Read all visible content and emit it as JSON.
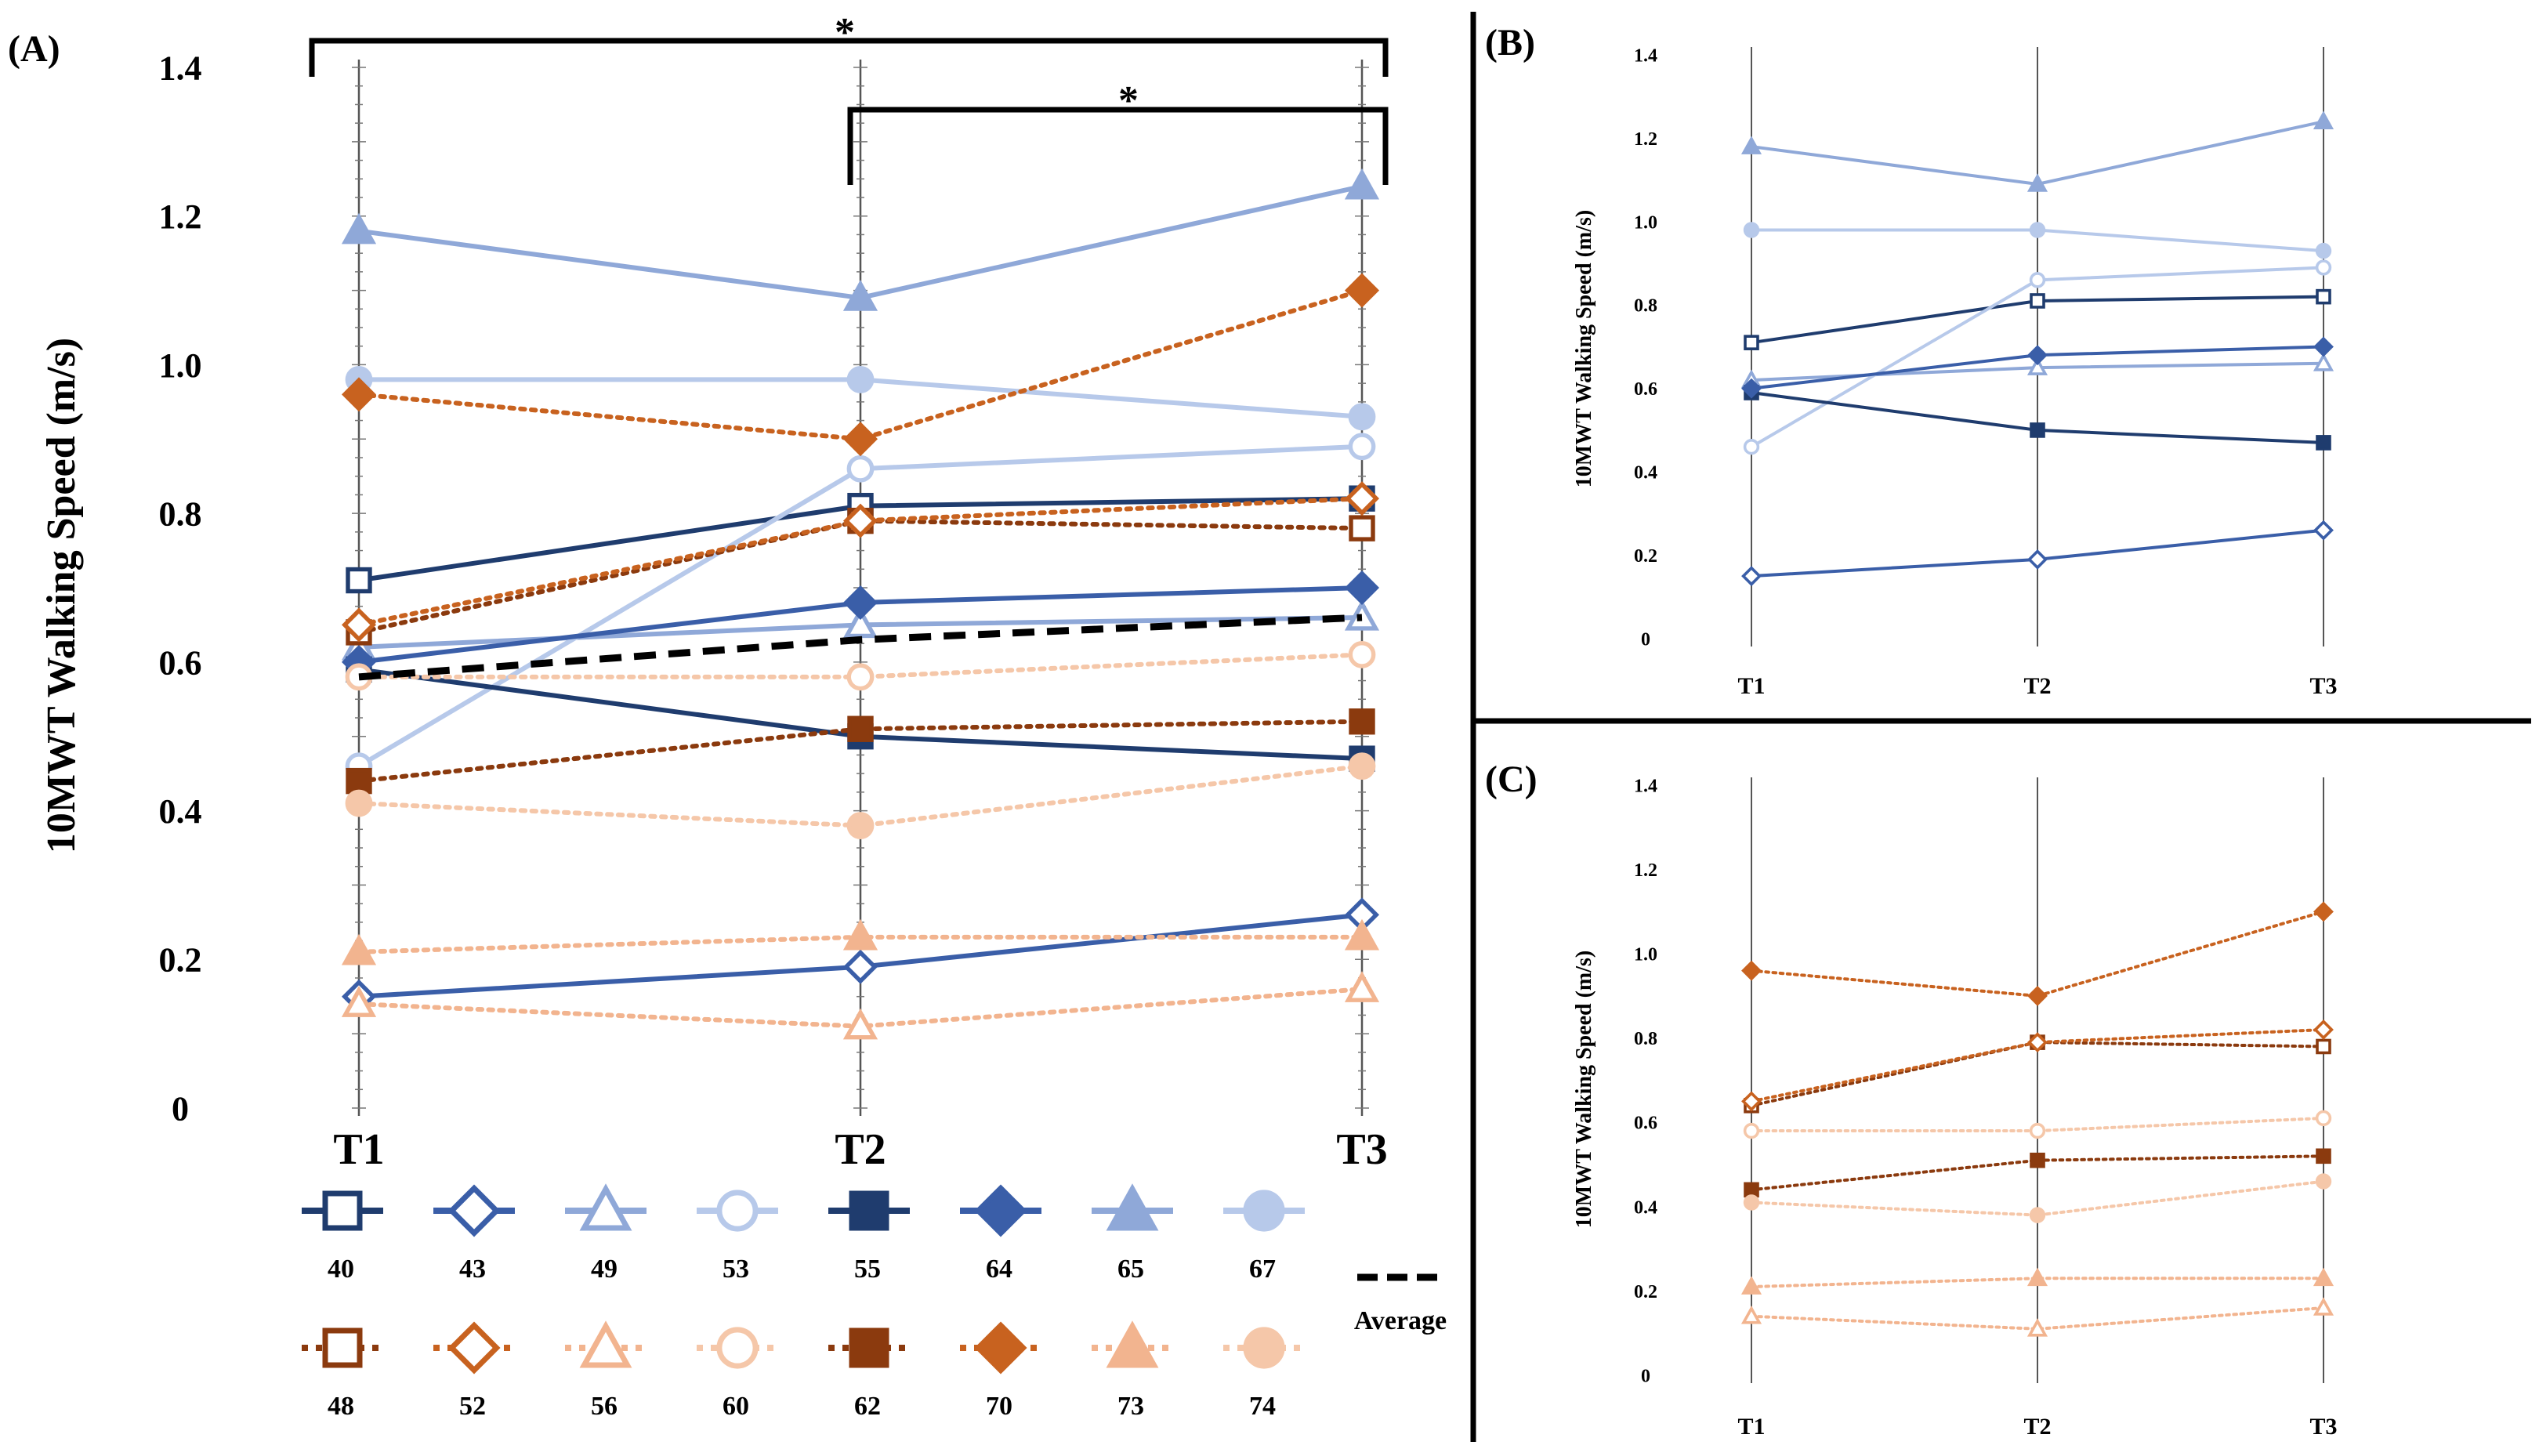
{
  "colors": {
    "s40": "#1f3c6e",
    "s43": "#3a5ea8",
    "s49": "#8fa8d8",
    "s53": "#b7c9ea",
    "s55": "#1f3c6e",
    "s64": "#3a5ea8",
    "s65": "#8fa8d8",
    "s67": "#b7c9ea",
    "s48": "#8b3a0e",
    "s52": "#c8621f",
    "s56": "#f2b48f",
    "s60": "#f5c7a9",
    "s62": "#8b3a0e",
    "s70": "#c8621f",
    "s73": "#f2b48f",
    "s74": "#f5c7a9",
    "average": "#000000"
  },
  "chart_data": [
    {
      "panel": "(A)",
      "type": "line",
      "ylabel": "10MWT Walking Speed (m/s)",
      "xlabel": "",
      "categories": [
        "T1",
        "T2",
        "T3"
      ],
      "ylim": [
        0,
        1.4
      ],
      "yticks": [
        "0",
        "0.2",
        "0.4",
        "0.6",
        "0.8",
        "1.0",
        "1.2",
        "1.4"
      ],
      "significance": [
        {
          "from": "T1",
          "to": "T3",
          "label": "*"
        },
        {
          "from": "T2",
          "to": "T3",
          "label": "*"
        }
      ],
      "series": [
        {
          "name": "40",
          "group": "blue",
          "marker": "square",
          "filled": false,
          "values": [
            0.71,
            0.81,
            0.82
          ]
        },
        {
          "name": "43",
          "group": "blue",
          "marker": "diamond",
          "filled": false,
          "values": [
            0.15,
            0.19,
            0.26
          ]
        },
        {
          "name": "49",
          "group": "blue",
          "marker": "triangle",
          "filled": false,
          "values": [
            0.62,
            0.65,
            0.66
          ]
        },
        {
          "name": "53",
          "group": "blue",
          "marker": "circle",
          "filled": false,
          "values": [
            0.46,
            0.86,
            0.89
          ]
        },
        {
          "name": "55",
          "group": "blue",
          "marker": "square",
          "filled": true,
          "values": [
            0.59,
            0.5,
            0.47
          ]
        },
        {
          "name": "64",
          "group": "blue",
          "marker": "diamond",
          "filled": true,
          "values": [
            0.6,
            0.68,
            0.7
          ]
        },
        {
          "name": "65",
          "group": "blue",
          "marker": "triangle",
          "filled": true,
          "values": [
            1.18,
            1.09,
            1.24
          ]
        },
        {
          "name": "67",
          "group": "blue",
          "marker": "circle",
          "filled": true,
          "values": [
            0.98,
            0.98,
            0.93
          ]
        },
        {
          "name": "48",
          "group": "orange",
          "marker": "square",
          "filled": false,
          "values": [
            0.64,
            0.79,
            0.78
          ]
        },
        {
          "name": "52",
          "group": "orange",
          "marker": "diamond",
          "filled": false,
          "values": [
            0.65,
            0.79,
            0.82
          ]
        },
        {
          "name": "56",
          "group": "orange",
          "marker": "triangle",
          "filled": false,
          "values": [
            0.14,
            0.11,
            0.16
          ]
        },
        {
          "name": "60",
          "group": "orange",
          "marker": "circle",
          "filled": false,
          "values": [
            0.58,
            0.58,
            0.61
          ]
        },
        {
          "name": "62",
          "group": "orange",
          "marker": "square",
          "filled": true,
          "values": [
            0.44,
            0.51,
            0.52
          ]
        },
        {
          "name": "70",
          "group": "orange",
          "marker": "diamond",
          "filled": true,
          "values": [
            0.96,
            0.9,
            1.1
          ]
        },
        {
          "name": "73",
          "group": "orange",
          "marker": "triangle",
          "filled": true,
          "values": [
            0.21,
            0.23,
            0.23
          ]
        },
        {
          "name": "74",
          "group": "orange",
          "marker": "circle",
          "filled": true,
          "values": [
            0.41,
            0.38,
            0.46
          ]
        }
      ],
      "average": {
        "name": "Average",
        "values": [
          0.58,
          0.63,
          0.66
        ]
      }
    },
    {
      "panel": "(B)",
      "type": "line",
      "ylabel": "10MWT Walking Speed (m/s)",
      "categories": [
        "T1",
        "T2",
        "T3"
      ],
      "ylim": [
        0,
        1.4
      ],
      "yticks": [
        "0",
        "0.2",
        "0.4",
        "0.6",
        "0.8",
        "1.0",
        "1.2",
        "1.4"
      ],
      "series_names": [
        "40",
        "43",
        "49",
        "53",
        "55",
        "64",
        "65",
        "67"
      ]
    },
    {
      "panel": "(C)",
      "type": "line",
      "ylabel": "10MWT Walking Speed (m/s)",
      "categories": [
        "T1",
        "T2",
        "T3"
      ],
      "ylim": [
        0,
        1.4
      ],
      "yticks": [
        "0",
        "0.2",
        "0.4",
        "0.6",
        "0.8",
        "1.0",
        "1.2",
        "1.4"
      ],
      "series_names": [
        "48",
        "52",
        "56",
        "60",
        "62",
        "70",
        "73",
        "74"
      ]
    }
  ],
  "legend": {
    "row1": [
      "40",
      "43",
      "49",
      "53",
      "55",
      "64",
      "65",
      "67"
    ],
    "row2": [
      "48",
      "52",
      "56",
      "60",
      "62",
      "70",
      "73",
      "74"
    ],
    "average_label": "Average"
  }
}
